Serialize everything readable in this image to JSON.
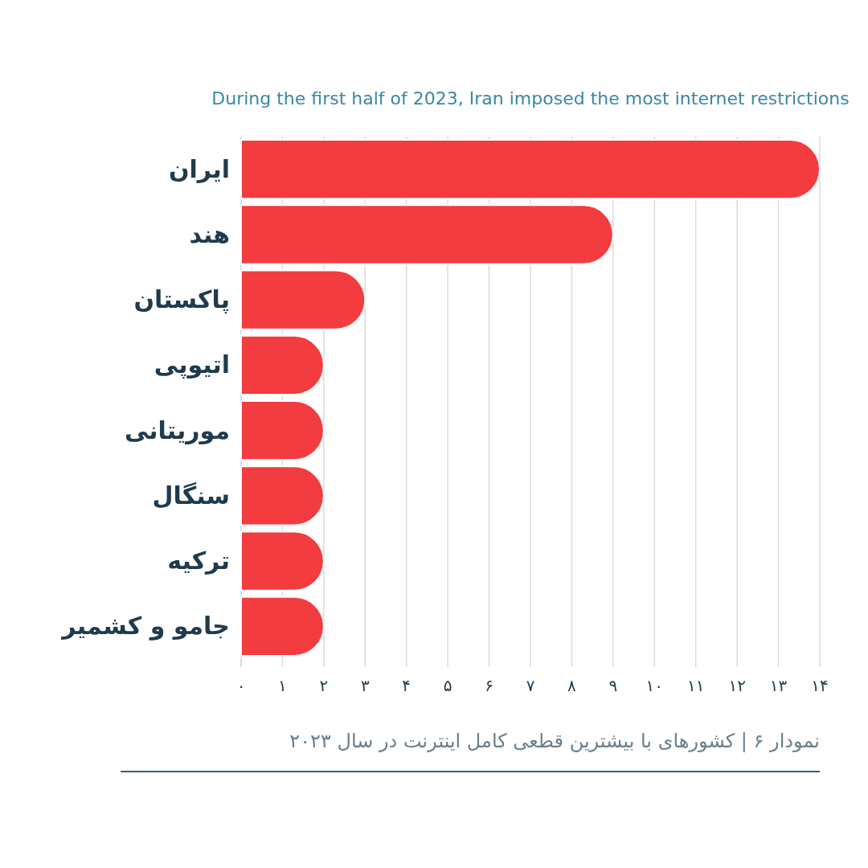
{
  "chart_data": {
    "type": "bar",
    "orientation": "horizontal",
    "title": "During the first half of 2023, Iran imposed the most internet restrictions",
    "categories": [
      "ایران",
      "هند",
      "پاکستان",
      "اتیوپی",
      "موریتانی",
      "سنگال",
      "ترکیه",
      "جامو و کشمیر"
    ],
    "values": [
      14,
      9,
      3,
      2,
      2,
      2,
      2,
      2
    ],
    "color": "#f23c40",
    "xlim": [
      0,
      14
    ],
    "xticks": [
      {
        "value": 0,
        "label": "۰"
      },
      {
        "value": 1,
        "label": "۱"
      },
      {
        "value": 2,
        "label": "۲"
      },
      {
        "value": 3,
        "label": "۳"
      },
      {
        "value": 4,
        "label": "۴"
      },
      {
        "value": 5,
        "label": "۵"
      },
      {
        "value": 6,
        "label": "۶"
      },
      {
        "value": 7,
        "label": "۷"
      },
      {
        "value": 8,
        "label": "۸"
      },
      {
        "value": 9,
        "label": "۹"
      },
      {
        "value": 10,
        "label": "۱۰"
      },
      {
        "value": 11,
        "label": "۱۱"
      },
      {
        "value": 12,
        "label": "۱۲"
      },
      {
        "value": 13,
        "label": "۱۳"
      },
      {
        "value": 14,
        "label": "۱۴"
      }
    ],
    "grid": "x",
    "annotations": [
      "نمودار ۶ | کشورهای با بیشترین قطعی کامل اینترنت در سال ۲۰۲۳"
    ]
  }
}
